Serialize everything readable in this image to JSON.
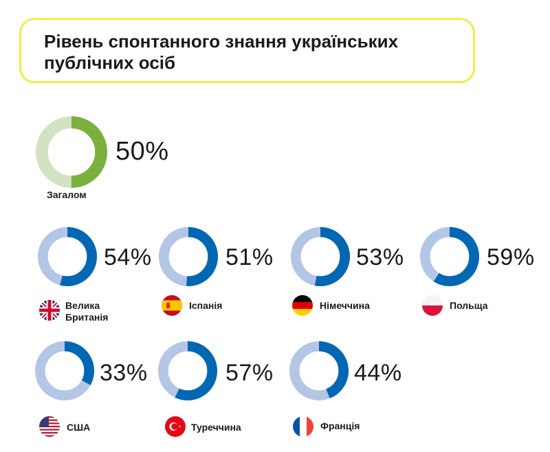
{
  "title": "Рівень спонтанного знання українських публічних осіб",
  "colors": {
    "title_border": "#f6e94a",
    "overall_fill": "#7bb03e",
    "overall_track": "#d3e2c1",
    "country_fill": "#0067b3",
    "country_track": "#b3c6e6"
  },
  "chart_data": {
    "type": "pie",
    "overall": {
      "label": "Загалом",
      "value": 50,
      "display": "50%"
    },
    "countries": [
      {
        "label_lines": [
          "Велика",
          "Британія"
        ],
        "value": 54,
        "display": "54%",
        "flag_icon": "uk-flag-icon"
      },
      {
        "label_lines": [
          "Іспанія"
        ],
        "value": 51,
        "display": "51%",
        "flag_icon": "spain-flag-icon"
      },
      {
        "label_lines": [
          "Німеччина"
        ],
        "value": 53,
        "display": "53%",
        "flag_icon": "germany-flag-icon"
      },
      {
        "label_lines": [
          "Польща"
        ],
        "value": 59,
        "display": "59%",
        "flag_icon": "poland-flag-icon"
      },
      {
        "label_lines": [
          "США"
        ],
        "value": 33,
        "display": "33%",
        "flag_icon": "usa-flag-icon"
      },
      {
        "label_lines": [
          "Туреччина"
        ],
        "value": 57,
        "display": "57%",
        "flag_icon": "turkey-flag-icon"
      },
      {
        "label_lines": [
          "Франція"
        ],
        "value": 44,
        "display": "44%",
        "flag_icon": "france-flag-icon"
      }
    ]
  }
}
